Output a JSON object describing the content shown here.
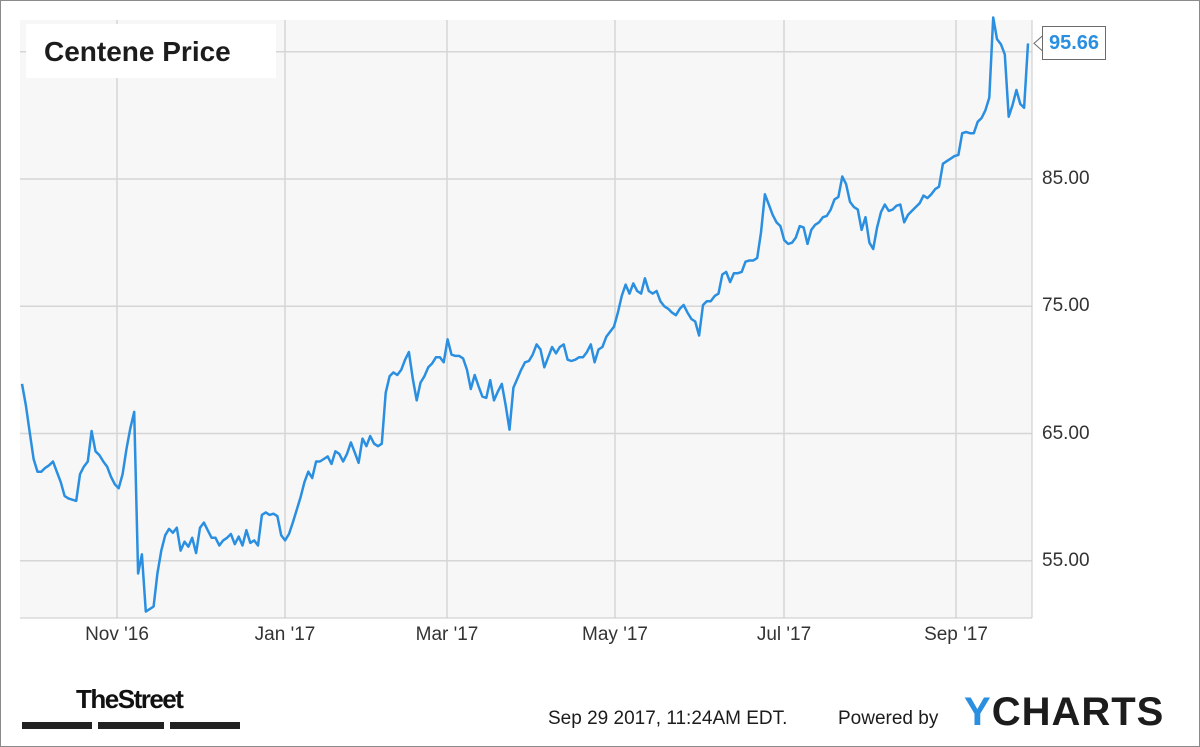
{
  "chart_data": {
    "type": "line",
    "title": "Centene Price",
    "xlabel": "",
    "ylabel": "",
    "x_tick_labels": [
      "Nov '16",
      "Jan '17",
      "Mar '17",
      "May '17",
      "Jul '17",
      "Sep '17"
    ],
    "y_tick_labels": [
      "55.00",
      "65.00",
      "75.00",
      "85.00"
    ],
    "y_ticks": [
      55,
      65,
      75,
      85,
      95
    ],
    "ylim": [
      50.5,
      97.5
    ],
    "grid": true,
    "last_value_label": "95.66",
    "line_color": "#2a8fe0",
    "series": [
      {
        "values": [
          68.9,
          67.2,
          65.1,
          63.0,
          62.0,
          62.0,
          62.3,
          62.5,
          62.8,
          62.0,
          61.2,
          60.1,
          59.9,
          59.8,
          59.7,
          61.8,
          62.4,
          62.8,
          65.2,
          63.6,
          63.3,
          62.8,
          62.4,
          61.6,
          61.0,
          60.7,
          61.8,
          63.8,
          65.4,
          66.7,
          54.0,
          55.5,
          51.0,
          51.2,
          51.4,
          54.0,
          55.8,
          57.0,
          57.5,
          57.2,
          57.6,
          55.8,
          56.5,
          56.1,
          56.8,
          55.6,
          57.6,
          58.0,
          57.4,
          56.8,
          56.8,
          56.2,
          56.6,
          56.8,
          57.1,
          56.3,
          56.9,
          56.2,
          57.4,
          56.4,
          56.6,
          56.2,
          58.6,
          58.8,
          58.6,
          58.7,
          58.5,
          57.0,
          56.6,
          57.1,
          58.0,
          59.0,
          60.0,
          61.2,
          62.0,
          61.5,
          62.8,
          62.8,
          63.0,
          63.2,
          62.6,
          63.6,
          63.4,
          62.8,
          63.4,
          64.3,
          63.5,
          62.7,
          64.6,
          64.0,
          64.8,
          64.2,
          64.0,
          64.2,
          68.2,
          69.5,
          69.8,
          69.6,
          70.0,
          70.8,
          71.4,
          69.3,
          67.6,
          69.0,
          69.5,
          70.2,
          70.5,
          71.0,
          71.0,
          70.6,
          72.4,
          71.2,
          71.1,
          71.1,
          70.9,
          70.0,
          68.5,
          69.6,
          68.7,
          67.9,
          67.8,
          69.2,
          67.6,
          68.3,
          68.9,
          67.2,
          65.3,
          68.6,
          69.3,
          70.0,
          70.6,
          70.7,
          71.2,
          72.0,
          71.6,
          70.2,
          71.0,
          71.8,
          71.3,
          71.8,
          72.0,
          70.8,
          70.7,
          70.8,
          71.0,
          71.0,
          71.4,
          72.0,
          70.6,
          71.6,
          71.8,
          72.6,
          73.0,
          73.4,
          74.5,
          75.8,
          76.7,
          76.0,
          76.8,
          76.2,
          76.0,
          77.2,
          76.2,
          76.0,
          76.2,
          75.4,
          75.0,
          74.8,
          74.5,
          74.3,
          74.8,
          75.1,
          74.5,
          74.0,
          73.8,
          72.7,
          75.1,
          75.4,
          75.4,
          75.8,
          76.0,
          77.5,
          77.7,
          76.9,
          77.6,
          77.6,
          77.7,
          78.5,
          78.6,
          78.6,
          78.8,
          80.8,
          83.8,
          83.0,
          82.2,
          81.6,
          81.3,
          80.2,
          79.9,
          80.0,
          80.4,
          81.3,
          81.2,
          79.9,
          81.0,
          81.4,
          81.6,
          82.0,
          82.1,
          82.6,
          83.4,
          83.6,
          85.2,
          84.6,
          83.2,
          82.8,
          82.6,
          81.0,
          82.0,
          80.0,
          79.5,
          81.2,
          82.4,
          83.0,
          82.5,
          82.6,
          82.9,
          83.0,
          81.6,
          82.2,
          82.5,
          82.8,
          83.1,
          83.7,
          83.5,
          83.8,
          84.2,
          84.4,
          86.2,
          86.4,
          86.6,
          86.8,
          86.9,
          88.6,
          88.7,
          88.6,
          88.6,
          89.5,
          89.8,
          90.4,
          91.4,
          97.7,
          96.0,
          95.6,
          94.8,
          89.9,
          90.8,
          92.0,
          90.9,
          90.6,
          95.66
        ]
      }
    ]
  },
  "footer": {
    "publisher": "TheStreet",
    "timestamp": "Sep 29 2017, 11:24AM EDT.",
    "powered_by": "Powered by",
    "brand": "YCHARTS"
  }
}
